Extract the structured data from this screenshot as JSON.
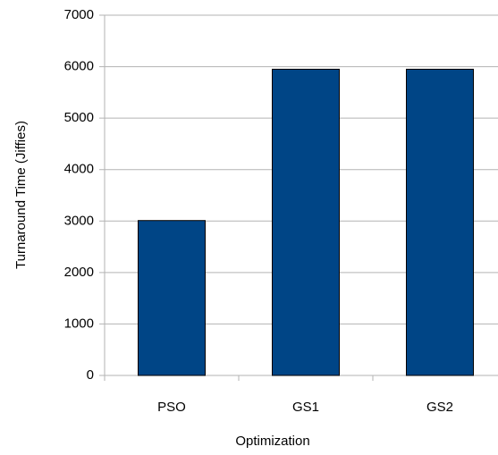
{
  "chart_data": {
    "type": "bar",
    "y_label": "Turnaround Time (Jiffies)",
    "x_label": "Optimization",
    "categories": [
      "PSO",
      "GS1",
      "GS2"
    ],
    "values": [
      3010,
      5950,
      5950
    ],
    "color": "#004586",
    "ylim": [
      0,
      7000
    ],
    "yticks": [
      0,
      1000,
      2000,
      3000,
      4000,
      5000,
      6000,
      7000
    ],
    "grid": true
  }
}
